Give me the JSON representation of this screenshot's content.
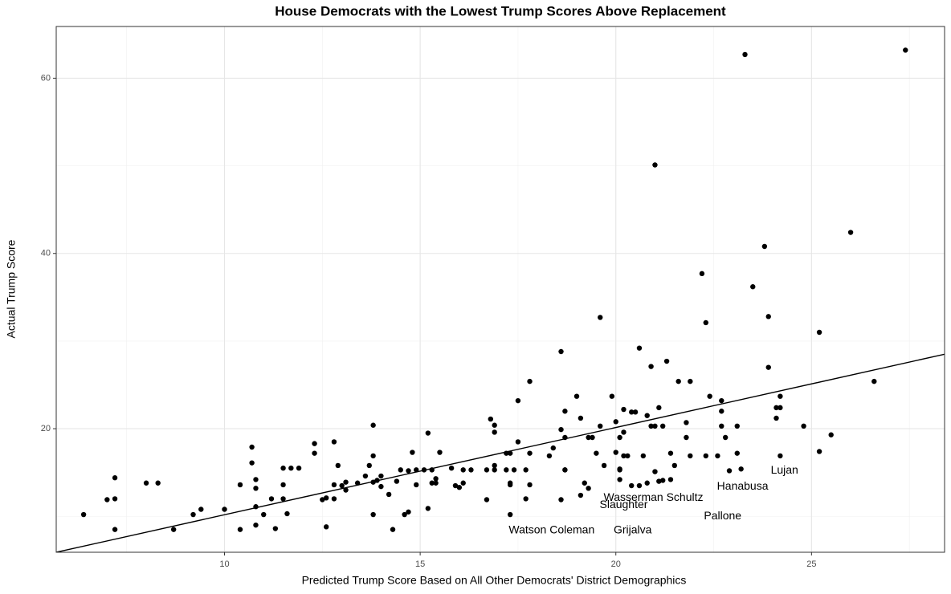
{
  "chart_data": {
    "type": "scatter",
    "title": "House Democrats with the Lowest Trump Scores Above Replacement",
    "xlabel": "Predicted Trump Score Based on All Other Democrats' District Demographics",
    "ylabel": "Actual Trump Score",
    "xlim": [
      5.7,
      28.4
    ],
    "ylim": [
      5.9,
      65.9
    ],
    "xticks": [
      10,
      15,
      20,
      25
    ],
    "yticks": [
      20,
      40,
      60
    ],
    "x_minor_gridlines": [
      7.5,
      12.5,
      17.5,
      22.5,
      27.5
    ],
    "y_minor_gridlines": [
      10,
      30,
      50
    ],
    "grid": true,
    "color": "#000000",
    "x": [
      6.4,
      7.2,
      7.0,
      7.2,
      7.2,
      8.0,
      8.3,
      8.7,
      9.2,
      9.4,
      10.0,
      10.4,
      10.4,
      10.7,
      10.7,
      10.8,
      10.8,
      10.8,
      10.8,
      11.0,
      11.2,
      11.3,
      11.5,
      11.5,
      11.5,
      11.6,
      11.7,
      11.9,
      12.3,
      12.3,
      12.5,
      12.6,
      12.6,
      12.8,
      12.8,
      12.8,
      12.9,
      13.0,
      13.1,
      13.1,
      13.4,
      13.6,
      13.7,
      13.8,
      13.8,
      13.8,
      13.8,
      13.9,
      14.0,
      14.0,
      14.2,
      14.3,
      14.4,
      14.5,
      14.6,
      14.7,
      14.7,
      14.8,
      14.9,
      14.9,
      15.1,
      15.2,
      15.3,
      15.2,
      15.3,
      15.4,
      15.4,
      15.5,
      15.8,
      15.9,
      16.0,
      16.1,
      16.1,
      16.3,
      16.7,
      16.7,
      16.8,
      16.9,
      16.9,
      16.9,
      16.9,
      17.2,
      17.2,
      17.3,
      17.3,
      17.3,
      17.3,
      17.4,
      17.5,
      17.5,
      17.7,
      17.7,
      17.8,
      17.8,
      17.8,
      18.3,
      18.4,
      18.6,
      18.6,
      18.6,
      18.7,
      18.7,
      18.7,
      18.7,
      19.0,
      19.1,
      19.1,
      19.2,
      19.3,
      19.3,
      19.4,
      19.5,
      19.6,
      19.7,
      19.6,
      19.9,
      20.0,
      20.0,
      20.1,
      20.1,
      20.1,
      20.1,
      20.2,
      20.2,
      20.2,
      20.3,
      20.4,
      20.4,
      20.5,
      20.6,
      20.6,
      20.7,
      20.8,
      20.8,
      20.9,
      20.9,
      21.0,
      21.0,
      21.0,
      21.1,
      21.1,
      21.2,
      21.2,
      21.4,
      21.3,
      21.4,
      21.5,
      21.6,
      21.8,
      21.8,
      21.9,
      21.9,
      22.2,
      22.3,
      22.3,
      22.4,
      22.6,
      22.7,
      22.7,
      22.7,
      22.8,
      22.9,
      23.1,
      23.1,
      23.2,
      23.3,
      23.5,
      23.8,
      23.9,
      23.9,
      24.1,
      24.1,
      24.2,
      24.2,
      24.2,
      24.8,
      25.2,
      25.2,
      25.5,
      26.0,
      26.6,
      27.4
    ],
    "y": [
      10.2,
      14.4,
      11.9,
      12.0,
      8.5,
      13.8,
      13.8,
      8.5,
      10.2,
      10.8,
      10.8,
      8.5,
      13.6,
      16.1,
      17.9,
      14.2,
      11.1,
      9.0,
      13.2,
      10.2,
      12.0,
      8.6,
      12.0,
      15.5,
      13.6,
      10.3,
      15.5,
      15.5,
      18.3,
      17.2,
      11.9,
      12.1,
      8.8,
      18.5,
      13.6,
      12.0,
      15.8,
      13.5,
      13.0,
      13.9,
      13.8,
      14.6,
      15.8,
      16.9,
      10.2,
      13.9,
      20.4,
      14.1,
      14.6,
      13.4,
      12.5,
      8.5,
      14.0,
      15.3,
      10.2,
      10.5,
      15.2,
      17.3,
      15.3,
      13.6,
      15.3,
      19.5,
      15.3,
      10.9,
      13.8,
      13.8,
      14.3,
      17.3,
      15.5,
      13.5,
      13.3,
      15.3,
      13.8,
      15.3,
      15.3,
      11.9,
      21.1,
      20.4,
      19.6,
      15.3,
      15.8,
      15.3,
      17.2,
      10.2,
      17.2,
      13.8,
      13.6,
      15.3,
      18.5,
      23.2,
      15.3,
      12.0,
      13.6,
      17.2,
      25.4,
      16.9,
      17.8,
      11.9,
      28.8,
      19.9,
      19.0,
      22.0,
      15.3,
      15.3,
      23.7,
      21.2,
      12.4,
      13.8,
      13.2,
      19.0,
      19.0,
      17.2,
      20.3,
      15.8,
      32.7,
      23.7,
      20.8,
      17.3,
      15.3,
      15.4,
      19.0,
      14.2,
      19.6,
      22.2,
      16.9,
      16.9,
      21.9,
      13.5,
      21.9,
      13.5,
      29.2,
      16.9,
      21.5,
      13.8,
      20.3,
      27.1,
      20.3,
      15.1,
      50.1,
      22.4,
      14.0,
      14.1,
      20.3,
      17.2,
      27.7,
      14.2,
      15.8,
      25.4,
      20.7,
      19.0,
      16.9,
      25.4,
      37.7,
      32.1,
      16.9,
      23.7,
      16.9,
      23.2,
      22.0,
      20.3,
      19.0,
      15.2,
      20.3,
      17.2,
      15.4,
      62.7,
      36.2,
      40.8,
      32.8,
      27.0,
      21.2,
      22.4,
      23.7,
      22.4,
      16.9,
      20.3,
      31.0,
      17.4,
      19.3,
      42.4,
      25.4,
      63.2
    ],
    "fit_line": {
      "x": [
        5.7,
        28.4
      ],
      "y": [
        5.9,
        28.5
      ],
      "color": "#000000"
    },
    "annotations": [
      {
        "text": "Watson Coleman",
        "x": 18.36,
        "y": 8.4
      },
      {
        "text": "Grijalva",
        "x": 20.43,
        "y": 8.4
      },
      {
        "text": "Slaughter",
        "x": 20.2,
        "y": 11.3
      },
      {
        "text": "Wasserman Schultz",
        "x": 20.96,
        "y": 12.1
      },
      {
        "text": "Pallone",
        "x": 22.73,
        "y": 10.0
      },
      {
        "text": "Hanabusa",
        "x": 23.24,
        "y": 13.4
      },
      {
        "text": "Lujan",
        "x": 24.31,
        "y": 15.2
      }
    ]
  }
}
